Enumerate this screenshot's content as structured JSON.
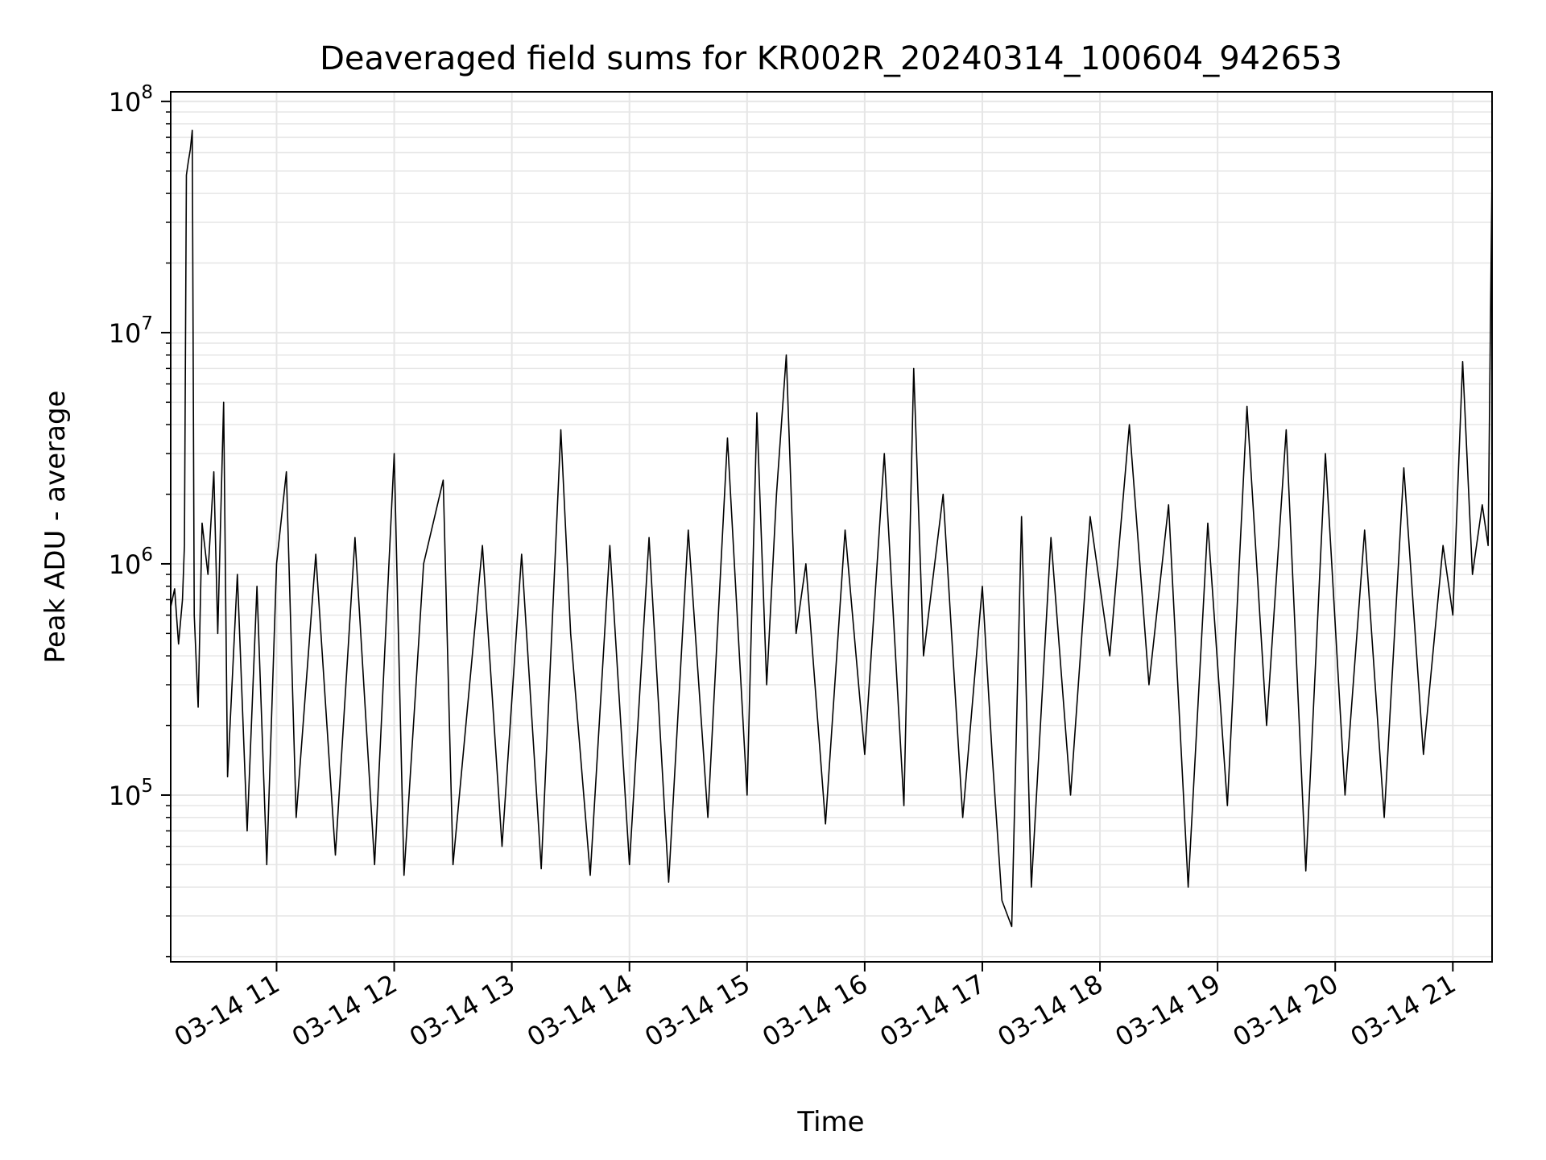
{
  "chart_data": {
    "type": "line",
    "title": "Deaveraged field sums for KR002R_20240314_100604_942653",
    "xlabel": "Time",
    "ylabel": "Peak ADU - average",
    "yscale": "log",
    "ylim": [
      19000,
      110000000
    ],
    "xlim": [
      "03-14 10:06",
      "03-14 21:20"
    ],
    "grid": true,
    "line_color": "#000000",
    "grid_color": "#e6e6e6",
    "x_ticks": [
      {
        "label": "03-14 11",
        "time": "03-14 11:00"
      },
      {
        "label": "03-14 12",
        "time": "03-14 12:00"
      },
      {
        "label": "03-14 13",
        "time": "03-14 13:00"
      },
      {
        "label": "03-14 14",
        "time": "03-14 14:00"
      },
      {
        "label": "03-14 15",
        "time": "03-14 15:00"
      },
      {
        "label": "03-14 16",
        "time": "03-14 16:00"
      },
      {
        "label": "03-14 17",
        "time": "03-14 17:00"
      },
      {
        "label": "03-14 18",
        "time": "03-14 18:00"
      },
      {
        "label": "03-14 19",
        "time": "03-14 19:00"
      },
      {
        "label": "03-14 20",
        "time": "03-14 20:00"
      },
      {
        "label": "03-14 21",
        "time": "03-14 21:00"
      }
    ],
    "y_ticks": [
      {
        "base": "10",
        "exp": "5",
        "value": 100000
      },
      {
        "base": "10",
        "exp": "6",
        "value": 1000000
      },
      {
        "base": "10",
        "exp": "7",
        "value": 10000000
      },
      {
        "base": "10",
        "exp": "8",
        "value": 100000000
      }
    ],
    "series": [
      {
        "points": [
          [
            "03-14 10:06",
            650000
          ],
          [
            "03-14 10:08",
            780000
          ],
          [
            "03-14 10:10",
            450000
          ],
          [
            "03-14 10:12",
            700000
          ],
          [
            "03-14 10:13",
            1200000
          ],
          [
            "03-14 10:14",
            48000000
          ],
          [
            "03-14 10:15",
            55000000
          ],
          [
            "03-14 10:16",
            62000000
          ],
          [
            "03-14 10:17",
            75000000
          ],
          [
            "03-14 10:18",
            600000
          ],
          [
            "03-14 10:20",
            240000
          ],
          [
            "03-14 10:22",
            1500000
          ],
          [
            "03-14 10:25",
            900000
          ],
          [
            "03-14 10:28",
            2500000
          ],
          [
            "03-14 10:30",
            500000
          ],
          [
            "03-14 10:33",
            5000000
          ],
          [
            "03-14 10:35",
            120000
          ],
          [
            "03-14 10:40",
            900000
          ],
          [
            "03-14 10:45",
            70000
          ],
          [
            "03-14 10:50",
            800000
          ],
          [
            "03-14 10:55",
            50000
          ],
          [
            "03-14 11:00",
            1000000
          ],
          [
            "03-14 11:05",
            2500000
          ],
          [
            "03-14 11:10",
            80000
          ],
          [
            "03-14 11:20",
            1100000
          ],
          [
            "03-14 11:30",
            55000
          ],
          [
            "03-14 11:40",
            1300000
          ],
          [
            "03-14 11:50",
            50000
          ],
          [
            "03-14 12:00",
            3000000
          ],
          [
            "03-14 12:05",
            45000
          ],
          [
            "03-14 12:15",
            1000000
          ],
          [
            "03-14 12:25",
            2300000
          ],
          [
            "03-14 12:30",
            50000
          ],
          [
            "03-14 12:45",
            1200000
          ],
          [
            "03-14 12:55",
            60000
          ],
          [
            "03-14 13:05",
            1100000
          ],
          [
            "03-14 13:15",
            48000
          ],
          [
            "03-14 13:25",
            3800000
          ],
          [
            "03-14 13:30",
            500000
          ],
          [
            "03-14 13:40",
            45000
          ],
          [
            "03-14 13:50",
            1200000
          ],
          [
            "03-14 14:00",
            50000
          ],
          [
            "03-14 14:10",
            1300000
          ],
          [
            "03-14 14:20",
            42000
          ],
          [
            "03-14 14:30",
            1400000
          ],
          [
            "03-14 14:40",
            80000
          ],
          [
            "03-14 14:50",
            3500000
          ],
          [
            "03-14 15:00",
            100000
          ],
          [
            "03-14 15:05",
            4500000
          ],
          [
            "03-14 15:10",
            300000
          ],
          [
            "03-14 15:15",
            2000000
          ],
          [
            "03-14 15:20",
            8000000
          ],
          [
            "03-14 15:25",
            500000
          ],
          [
            "03-14 15:30",
            1000000
          ],
          [
            "03-14 15:40",
            75000
          ],
          [
            "03-14 15:50",
            1400000
          ],
          [
            "03-14 16:00",
            150000
          ],
          [
            "03-14 16:10",
            3000000
          ],
          [
            "03-14 16:20",
            90000
          ],
          [
            "03-14 16:25",
            7000000
          ],
          [
            "03-14 16:30",
            400000
          ],
          [
            "03-14 16:40",
            2000000
          ],
          [
            "03-14 16:50",
            80000
          ],
          [
            "03-14 17:00",
            800000
          ],
          [
            "03-14 17:05",
            150000
          ],
          [
            "03-14 17:10",
            35000
          ],
          [
            "03-14 17:15",
            27000
          ],
          [
            "03-14 17:20",
            1600000
          ],
          [
            "03-14 17:25",
            40000
          ],
          [
            "03-14 17:35",
            1300000
          ],
          [
            "03-14 17:45",
            100000
          ],
          [
            "03-14 17:55",
            1600000
          ],
          [
            "03-14 18:05",
            400000
          ],
          [
            "03-14 18:15",
            4000000
          ],
          [
            "03-14 18:25",
            300000
          ],
          [
            "03-14 18:35",
            1800000
          ],
          [
            "03-14 18:45",
            40000
          ],
          [
            "03-14 18:55",
            1500000
          ],
          [
            "03-14 19:05",
            90000
          ],
          [
            "03-14 19:15",
            4800000
          ],
          [
            "03-14 19:25",
            200000
          ],
          [
            "03-14 19:35",
            3800000
          ],
          [
            "03-14 19:45",
            47000
          ],
          [
            "03-14 19:55",
            3000000
          ],
          [
            "03-14 20:05",
            100000
          ],
          [
            "03-14 20:15",
            1400000
          ],
          [
            "03-14 20:25",
            80000
          ],
          [
            "03-14 20:35",
            2600000
          ],
          [
            "03-14 20:45",
            150000
          ],
          [
            "03-14 20:55",
            1200000
          ],
          [
            "03-14 21:00",
            600000
          ],
          [
            "03-14 21:05",
            7500000
          ],
          [
            "03-14 21:10",
            900000
          ],
          [
            "03-14 21:15",
            1800000
          ],
          [
            "03-14 21:18",
            1200000
          ],
          [
            "03-14 21:20",
            50000000
          ]
        ]
      }
    ]
  }
}
